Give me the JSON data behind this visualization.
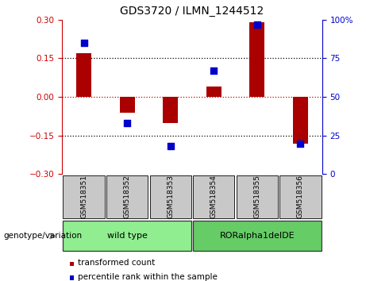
{
  "title": "GDS3720 / ILMN_1244512",
  "samples": [
    "GSM518351",
    "GSM518352",
    "GSM518353",
    "GSM518354",
    "GSM518355",
    "GSM518356"
  ],
  "transformed_count": [
    0.17,
    -0.06,
    -0.1,
    0.04,
    0.29,
    -0.18
  ],
  "percentile_rank": [
    85,
    33,
    18,
    67,
    97,
    20
  ],
  "groups": [
    {
      "label": "wild type",
      "samples": [
        0,
        1,
        2
      ],
      "color": "#90EE90"
    },
    {
      "label": "RORalpha1delDE",
      "samples": [
        3,
        4,
        5
      ],
      "color": "#66CC66"
    }
  ],
  "ylim_left": [
    -0.3,
    0.3
  ],
  "ylim_right": [
    0,
    100
  ],
  "yticks_left": [
    -0.3,
    -0.15,
    0,
    0.15,
    0.3
  ],
  "yticks_right": [
    0,
    25,
    50,
    75,
    100
  ],
  "hlines_black": [
    0.15,
    -0.15
  ],
  "hline_red": 0,
  "bar_color": "#AA0000",
  "dot_color": "#0000CC",
  "bar_width": 0.35,
  "dot_size": 40,
  "left_tick_color": "#CC0000",
  "right_tick_color": "#0000CC",
  "background_color": "#FFFFFF",
  "legend_items": [
    "transformed count",
    "percentile rank within the sample"
  ],
  "legend_colors": [
    "#AA0000",
    "#0000CC"
  ],
  "genotype_label": "genotype/variation",
  "group_box_color": "#C8C8C8",
  "tick_label_fontsize": 7.5,
  "title_fontsize": 10,
  "sample_fontsize": 6.5,
  "group_fontsize": 8,
  "legend_fontsize": 7.5
}
